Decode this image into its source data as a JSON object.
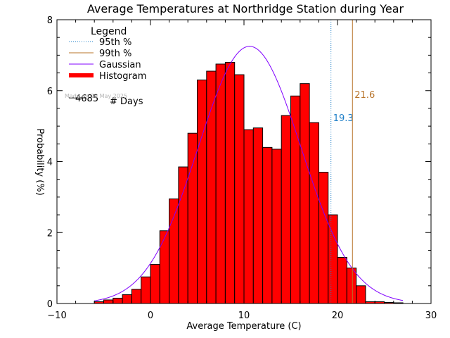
{
  "chart_data": {
    "type": "bar",
    "title": "Average Temperatures at Northridge Station during Year",
    "xlabel": "Average Temperature (C)",
    "ylabel": "Probability (%)",
    "xlim": [
      -10,
      30
    ],
    "ylim": [
      0,
      8
    ],
    "x_ticks": [
      "−10",
      "0",
      "10",
      "20",
      "30"
    ],
    "x_tick_values": [
      -10,
      0,
      10,
      20,
      30
    ],
    "y_ticks": [
      "0",
      "2",
      "4",
      "6",
      "8"
    ],
    "y_tick_values": [
      0,
      2,
      4,
      6,
      8
    ],
    "bin_width": 1,
    "histogram": {
      "name": "Histogram",
      "color": "#ff0000",
      "bin_starts": [
        -6,
        -5,
        -4,
        -3,
        -2,
        -1,
        0,
        1,
        2,
        3,
        4,
        5,
        6,
        7,
        8,
        9,
        10,
        11,
        12,
        13,
        14,
        15,
        16,
        17,
        18,
        19,
        20,
        21,
        22,
        23,
        24,
        25,
        26
      ],
      "values": [
        0.05,
        0.1,
        0.15,
        0.25,
        0.4,
        0.75,
        1.1,
        2.05,
        2.95,
        3.85,
        4.8,
        6.3,
        6.55,
        6.75,
        6.8,
        6.45,
        4.9,
        4.95,
        4.4,
        4.35,
        5.3,
        5.85,
        6.2,
        5.1,
        3.7,
        2.5,
        1.3,
        1.0,
        0.5,
        0.05,
        0.05,
        0.03,
        0.02
      ]
    },
    "gaussian": {
      "name": "Gaussian",
      "color": "#8000ff",
      "x_range": [
        -6,
        27
      ],
      "mean": 10.6,
      "sd": 5.5,
      "peak": 7.25
    },
    "percentiles": [
      {
        "name": "95th %",
        "value": 19.3,
        "label": "19.3",
        "color": "#1e7fc8",
        "style": "dotted"
      },
      {
        "name": "99th %",
        "value": 21.6,
        "label": "21.6",
        "color": "#b8742a",
        "style": "solid"
      }
    ],
    "legend": {
      "title": "Legend",
      "placement": "top-left",
      "items": [
        {
          "label": "95th %",
          "color": "#1e7fc8",
          "style": "dotted"
        },
        {
          "label": "99th %",
          "color": "#b8742a",
          "style": "solid"
        },
        {
          "label": "Gaussian",
          "color": "#8000ff",
          "style": "solid"
        },
        {
          "label": "Histogram",
          "color": "#ff0000",
          "style": "thick"
        }
      ],
      "count_value": "4685",
      "count_label": "# Days"
    },
    "credit": "Made on 29 May 2025",
    "grid": false
  }
}
